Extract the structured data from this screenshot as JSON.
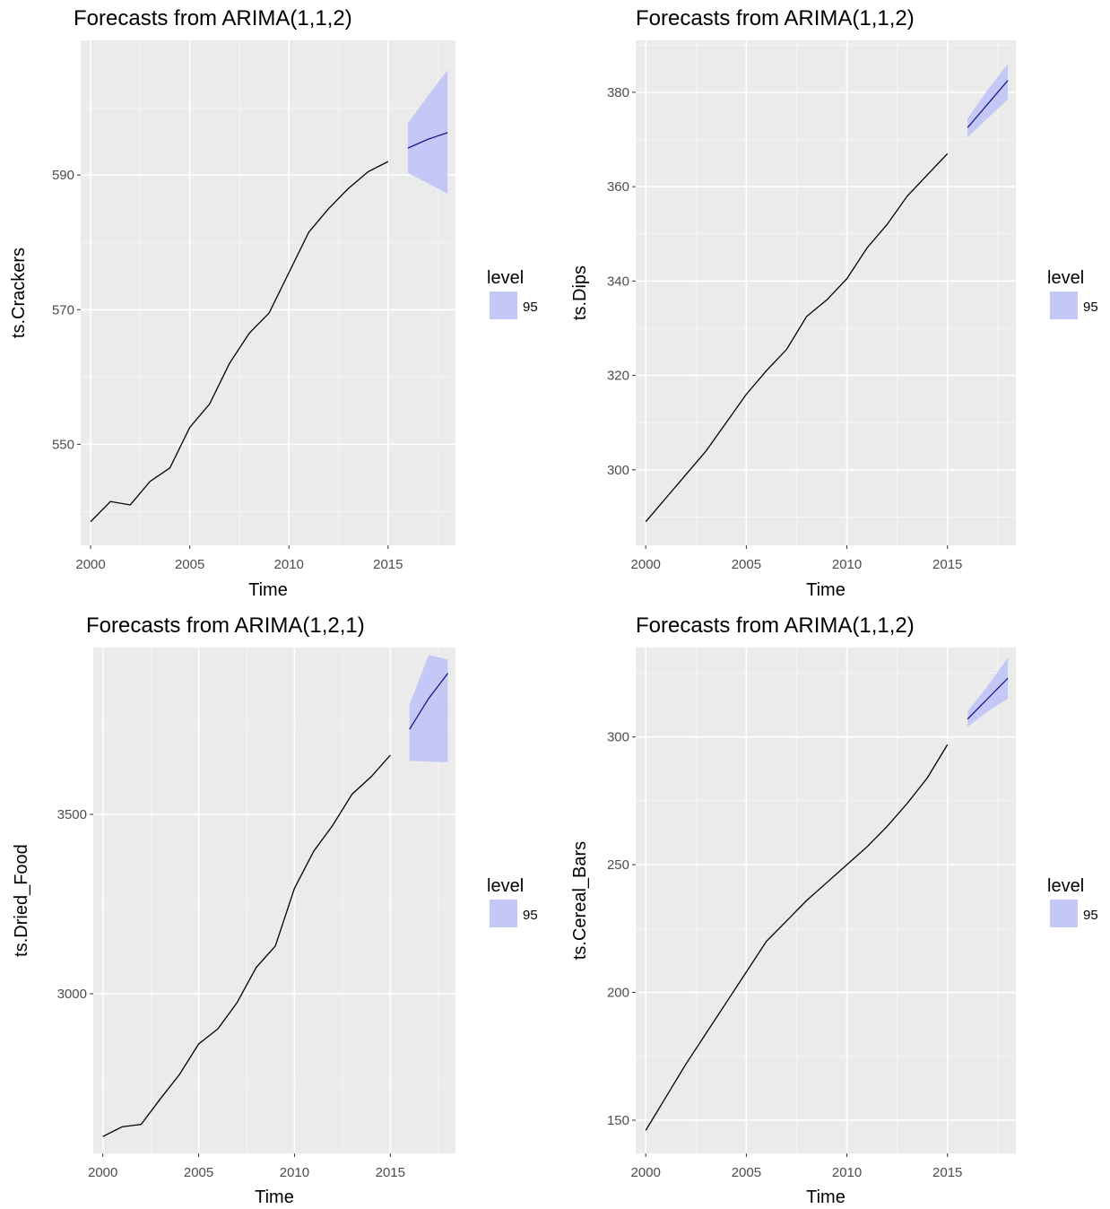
{
  "colors": {
    "panel_bg": "#ebebeb",
    "grid_major": "#ffffff",
    "grid_minor": "#f5f5f5",
    "band_fill": "#c4c8f6",
    "history_line": "#000000",
    "forecast_line": "#1a1a8c"
  },
  "chart_data": [
    {
      "type": "line",
      "title": "Forecasts from ARIMA(1,1,2)",
      "xlabel": "Time",
      "ylabel": "ts.Crackers",
      "xlim": [
        1999.5,
        2018.4
      ],
      "ylim": [
        535,
        610
      ],
      "xticks": [
        2000,
        2005,
        2010,
        2015
      ],
      "xtick_labels": [
        "2000",
        "2005",
        "2010",
        "2015"
      ],
      "yticks": [
        550,
        570,
        590
      ],
      "ytick_labels": [
        "550",
        "570",
        "590"
      ],
      "legend": {
        "title": "level",
        "items": [
          "95"
        ],
        "position": "right"
      },
      "series": [
        {
          "role": "history",
          "x": [
            2000,
            2001,
            2002,
            2003,
            2004,
            2005,
            2006,
            2007,
            2008,
            2009,
            2010,
            2011,
            2012,
            2013,
            2014,
            2015
          ],
          "values": [
            538.5,
            541.5,
            541.0,
            544.5,
            546.5,
            552.5,
            556.0,
            562.0,
            566.5,
            569.5,
            575.5,
            581.5,
            585.0,
            588.0,
            590.5,
            592.0
          ]
        },
        {
          "role": "forecast",
          "x": [
            2016,
            2017,
            2018
          ],
          "values": [
            594.0,
            595.3,
            596.3
          ]
        },
        {
          "role": "band-95",
          "x": [
            2016,
            2017,
            2018
          ],
          "lower": [
            590.3,
            588.8,
            587.2
          ],
          "upper": [
            597.7,
            601.7,
            605.6
          ]
        }
      ]
    },
    {
      "type": "line",
      "title": "Forecasts from ARIMA(1,1,2)",
      "xlabel": "Time",
      "ylabel": "ts.Dips",
      "xlim": [
        1999.5,
        2018.4
      ],
      "ylim": [
        284,
        391
      ],
      "xticks": [
        2000,
        2005,
        2010,
        2015
      ],
      "xtick_labels": [
        "2000",
        "2005",
        "2010",
        "2015"
      ],
      "yticks": [
        300,
        320,
        340,
        360,
        380
      ],
      "ytick_labels": [
        "300",
        "320",
        "340",
        "360",
        "380"
      ],
      "legend": {
        "title": "level",
        "items": [
          "95"
        ],
        "position": "right"
      },
      "series": [
        {
          "role": "history",
          "x": [
            2000,
            2001,
            2002,
            2003,
            2004,
            2005,
            2006,
            2007,
            2008,
            2009,
            2010,
            2011,
            2012,
            2013,
            2014,
            2015
          ],
          "values": [
            289.0,
            294.0,
            299.0,
            304.0,
            310.0,
            316.0,
            321.0,
            325.5,
            332.5,
            336.0,
            340.5,
            347.0,
            352.0,
            358.0,
            362.5,
            367.0
          ]
        },
        {
          "role": "forecast",
          "x": [
            2016,
            2017,
            2018
          ],
          "values": [
            372.5,
            377.5,
            382.5
          ]
        },
        {
          "role": "band-95",
          "x": [
            2016,
            2017,
            2018
          ],
          "lower": [
            370.5,
            374.5,
            378.5
          ],
          "upper": [
            374.5,
            380.5,
            386.0
          ]
        }
      ]
    },
    {
      "type": "line",
      "title": "Forecasts from ARIMA(1,2,1)",
      "xlabel": "Time",
      "ylabel": "ts.Dried_Food",
      "xlim": [
        1999.5,
        2018.4
      ],
      "ylim": [
        2555,
        3965
      ],
      "xticks": [
        2000,
        2005,
        2010,
        2015
      ],
      "xtick_labels": [
        "2000",
        "2005",
        "2010",
        "2015"
      ],
      "yticks": [
        3000,
        3500
      ],
      "ytick_labels": [
        "3000",
        "3500"
      ],
      "legend": {
        "title": "level",
        "items": [
          "95"
        ],
        "position": "right"
      },
      "series": [
        {
          "role": "history",
          "x": [
            2000,
            2001,
            2002,
            2003,
            2004,
            2005,
            2006,
            2007,
            2008,
            2009,
            2010,
            2011,
            2012,
            2013,
            2014,
            2015
          ],
          "values": [
            2602,
            2629,
            2636,
            2707,
            2775,
            2860,
            2902,
            2975,
            3073,
            3133,
            3294,
            3397,
            3470,
            3556,
            3605,
            3665
          ]
        },
        {
          "role": "forecast",
          "x": [
            2016,
            2017,
            2018
          ],
          "values": [
            3737,
            3823,
            3893
          ]
        },
        {
          "role": "band-95",
          "x": [
            2016,
            2017,
            2018
          ],
          "lower": [
            3649,
            3647,
            3645
          ],
          "upper": [
            3806,
            3944,
            3932
          ]
        }
      ]
    },
    {
      "type": "line",
      "title": "Forecasts from ARIMA(1,1,2)",
      "xlabel": "Time",
      "ylabel": "ts.Cereal_Bars",
      "xlim": [
        1999.5,
        2018.4
      ],
      "ylim": [
        137,
        335
      ],
      "xticks": [
        2000,
        2005,
        2010,
        2015
      ],
      "xtick_labels": [
        "2000",
        "2005",
        "2010",
        "2015"
      ],
      "yticks": [
        150,
        200,
        250,
        300
      ],
      "ytick_labels": [
        "150",
        "200",
        "250",
        "300"
      ],
      "legend": {
        "title": "level",
        "items": [
          "95"
        ],
        "position": "right"
      },
      "series": [
        {
          "role": "history",
          "x": [
            2000,
            2001,
            2002,
            2003,
            2004,
            2005,
            2006,
            2007,
            2008,
            2009,
            2010,
            2011,
            2012,
            2013,
            2014,
            2015
          ],
          "values": [
            146,
            159,
            172,
            184,
            196,
            208,
            220,
            228,
            236,
            243,
            250,
            257,
            265,
            274,
            284,
            297
          ]
        },
        {
          "role": "forecast",
          "x": [
            2016,
            2017,
            2018
          ],
          "values": [
            307,
            315,
            323
          ]
        },
        {
          "role": "band-95",
          "x": [
            2016,
            2017,
            2018
          ],
          "lower": [
            304,
            310,
            315
          ],
          "upper": [
            310,
            320,
            331
          ]
        }
      ]
    }
  ]
}
